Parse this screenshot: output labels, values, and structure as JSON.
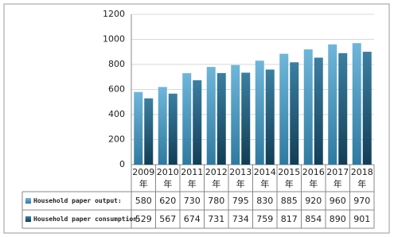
{
  "chart_data": {
    "type": "bar",
    "categories": [
      "2009年",
      "2010年",
      "2011年",
      "2012年",
      "2013年",
      "2014年",
      "2015年",
      "2016年",
      "2017年",
      "2018年"
    ],
    "series": [
      {
        "name": "Household paper output:",
        "color": "#4a9cc4",
        "values": [
          580,
          620,
          730,
          780,
          795,
          830,
          885,
          920,
          960,
          970
        ]
      },
      {
        "name": "Household paper consumption:",
        "color": "#1f5a78",
        "values": [
          529,
          567,
          674,
          731,
          734,
          759,
          817,
          854,
          890,
          901
        ]
      }
    ],
    "ylim": [
      0,
      1200
    ],
    "yticks": [
      0,
      200,
      400,
      600,
      800,
      1000,
      1200
    ],
    "grid": true
  }
}
